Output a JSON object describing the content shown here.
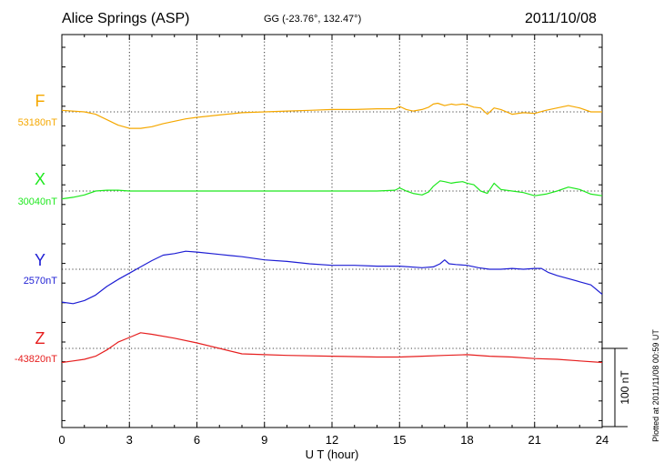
{
  "chart_data": {
    "type": "line",
    "title": "Alice Springs (ASP)",
    "subtitle": "GG (-23.76°, 132.47°)",
    "date": "2011/10/08",
    "xlabel": "U T (hour)",
    "ylabel": "",
    "xlim": [
      0,
      24
    ],
    "xticks": [
      "0",
      "3",
      "6",
      "9",
      "12",
      "15",
      "18",
      "21",
      "24"
    ],
    "grid": true,
    "scale_bar_label": "100 nT",
    "plotted_note": "Plotted at 2011/11/08 00:59 UT",
    "series": [
      {
        "name": "F",
        "baseline_label": "53180nT",
        "color": "#f5a800",
        "x": [
          0,
          1,
          1.5,
          2,
          2.5,
          3,
          3.5,
          4,
          4.5,
          5,
          5.5,
          6,
          7,
          8,
          9,
          10,
          11,
          12,
          13,
          14,
          14.8,
          15,
          15.3,
          15.6,
          16,
          16.3,
          16.5,
          16.7,
          17,
          17.3,
          17.5,
          17.8,
          18,
          18.3,
          18.6,
          18.9,
          19.2,
          19.5,
          20,
          20.5,
          21,
          21.5,
          22,
          22.5,
          23,
          23.5,
          24
        ],
        "values": [
          2,
          0,
          -3,
          -10,
          -17,
          -21,
          -21,
          -19,
          -15,
          -12,
          -9,
          -7,
          -4,
          -1,
          0,
          1,
          2,
          3,
          3,
          4,
          4,
          7,
          3,
          1,
          3,
          6,
          10,
          11,
          8,
          10,
          9,
          10,
          9,
          6,
          5,
          -3,
          5,
          3,
          -3,
          -1,
          -2,
          2,
          5,
          8,
          5,
          0,
          0
        ]
      },
      {
        "name": "X",
        "baseline_label": "30040nT",
        "color": "#1ee81e",
        "x": [
          0,
          0.5,
          1,
          1.5,
          2,
          2.5,
          3,
          3.5,
          4,
          5,
          6,
          7,
          8,
          9,
          10,
          11,
          12,
          13,
          14,
          14.8,
          15,
          15.3,
          15.6,
          16,
          16.3,
          16.5,
          16.8,
          17,
          17.3,
          17.5,
          17.8,
          18,
          18.3,
          18.6,
          18.9,
          19.2,
          19.5,
          20,
          20.5,
          21,
          21.5,
          22,
          22.5,
          23,
          23.5,
          24
        ],
        "values": [
          -10,
          -8,
          -5,
          0,
          1,
          1,
          0,
          0,
          0,
          0,
          0,
          0,
          0,
          0,
          0,
          0,
          0,
          0,
          0,
          1,
          4,
          0,
          -3,
          -5,
          -1,
          6,
          13,
          12,
          10,
          11,
          12,
          10,
          8,
          0,
          -3,
          10,
          2,
          0,
          -2,
          -6,
          -4,
          0,
          5,
          2,
          -4,
          -6
        ]
      },
      {
        "name": "Y",
        "baseline_label": "2570nT",
        "color": "#1e1ed4",
        "x": [
          0,
          0.5,
          1,
          1.5,
          2,
          2.5,
          3,
          3.5,
          4,
          4.5,
          5,
          5.5,
          6,
          7,
          8,
          9,
          10,
          11,
          12,
          13,
          14,
          15,
          16,
          16.5,
          16.8,
          17,
          17.2,
          17.5,
          18,
          18.5,
          19,
          19.5,
          20,
          20.5,
          21,
          21.3,
          21.6,
          22,
          22.5,
          23,
          23.5,
          24
        ],
        "values": [
          -42,
          -44,
          -40,
          -33,
          -22,
          -13,
          -5,
          3,
          11,
          18,
          20,
          23,
          22,
          19,
          16,
          12,
          10,
          7,
          5,
          5,
          4,
          4,
          2,
          3,
          7,
          12,
          7,
          6,
          5,
          2,
          0,
          0,
          1,
          0,
          1,
          1,
          -4,
          -8,
          -12,
          -16,
          -20,
          -32
        ]
      },
      {
        "name": "Z",
        "baseline_label": "-43820nT",
        "color": "#e61e1e",
        "x": [
          0,
          0.5,
          1,
          1.5,
          2,
          2.5,
          3,
          3.5,
          4,
          5,
          6,
          7,
          8,
          9,
          10,
          12,
          14,
          15,
          16,
          17,
          18,
          19,
          20,
          21,
          22,
          23,
          24
        ],
        "values": [
          -18,
          -16,
          -14,
          -10,
          -2,
          8,
          14,
          20,
          18,
          13,
          7,
          0,
          -7,
          -8,
          -9,
          -10,
          -11,
          -11,
          -10,
          -9,
          -8,
          -10,
          -11,
          -13,
          -14,
          -16,
          -18
        ]
      }
    ]
  }
}
